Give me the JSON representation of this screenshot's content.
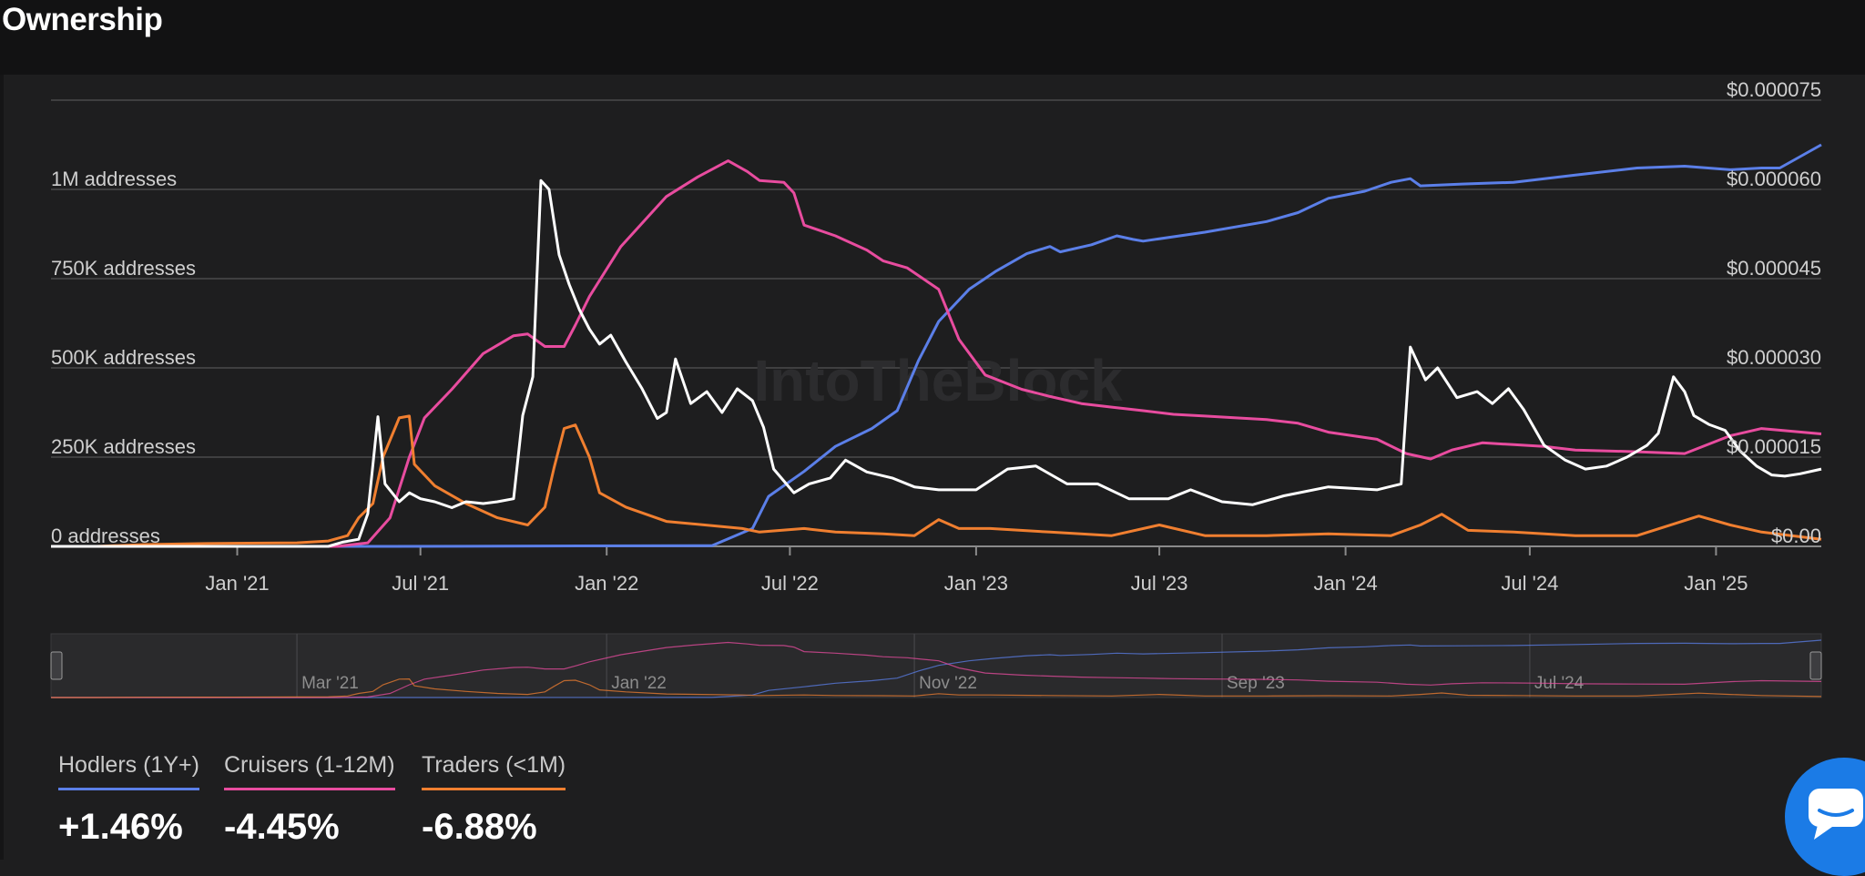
{
  "header": {
    "title": "Ownership"
  },
  "watermark": "IntoTheBlock",
  "chart_data": {
    "type": "line",
    "left_axis": {
      "ticks": [
        {
          "value": 0,
          "label": "0 addresses"
        },
        {
          "value": 250000,
          "label": "250K addresses"
        },
        {
          "value": 500000,
          "label": "500K addresses"
        },
        {
          "value": 750000,
          "label": "750K addresses"
        },
        {
          "value": 1000000,
          "label": "1M addresses"
        }
      ],
      "range": [
        0,
        1250000
      ]
    },
    "right_axis": {
      "ticks": [
        {
          "value": 0,
          "label": "$0.00"
        },
        {
          "value": 1.5e-05,
          "label": "$0.000015"
        },
        {
          "value": 3e-05,
          "label": "$0.000030"
        },
        {
          "value": 4.5e-05,
          "label": "$0.000045"
        },
        {
          "value": 6e-05,
          "label": "$0.000060"
        },
        {
          "value": 7.5e-05,
          "label": "$0.000075"
        }
      ],
      "range": [
        0,
        7.5e-05
      ]
    },
    "x_axis": {
      "range": [
        "2020-07-01",
        "2025-04-15"
      ],
      "ticks": [
        "Jan '21",
        "Jul '21",
        "Jan '22",
        "Jul '22",
        "Jan '23",
        "Jul '23",
        "Jan '24",
        "Jul '24",
        "Jan '25"
      ]
    },
    "navigator_labels": [
      "Mar '21",
      "Jan '22",
      "Nov '22",
      "Sep '23",
      "Jul '24"
    ],
    "grid": true,
    "series": [
      {
        "name": "Hodlers (1Y+)",
        "color": "#5b7fe8",
        "axis": "left",
        "points": [
          [
            "2020-07-01",
            0
          ],
          [
            "2021-06-01",
            0
          ],
          [
            "2022-04-15",
            2000
          ],
          [
            "2022-05-25",
            50000
          ],
          [
            "2022-06-10",
            140000
          ],
          [
            "2022-07-15",
            210000
          ],
          [
            "2022-08-15",
            280000
          ],
          [
            "2022-09-20",
            330000
          ],
          [
            "2022-10-15",
            380000
          ],
          [
            "2022-11-05",
            520000
          ],
          [
            "2022-11-25",
            630000
          ],
          [
            "2022-12-25",
            720000
          ],
          [
            "2023-01-20",
            770000
          ],
          [
            "2023-02-20",
            820000
          ],
          [
            "2023-03-15",
            840000
          ],
          [
            "2023-03-25",
            825000
          ],
          [
            "2023-04-25",
            845000
          ],
          [
            "2023-05-20",
            870000
          ],
          [
            "2023-06-05",
            860000
          ],
          [
            "2023-06-15",
            855000
          ],
          [
            "2023-08-15",
            880000
          ],
          [
            "2023-10-15",
            910000
          ],
          [
            "2023-11-15",
            935000
          ],
          [
            "2023-12-15",
            975000
          ],
          [
            "2024-01-20",
            995000
          ],
          [
            "2024-02-15",
            1020000
          ],
          [
            "2024-03-05",
            1030000
          ],
          [
            "2024-03-15",
            1010000
          ],
          [
            "2024-04-25",
            1015000
          ],
          [
            "2024-06-15",
            1020000
          ],
          [
            "2024-08-15",
            1040000
          ],
          [
            "2024-10-15",
            1060000
          ],
          [
            "2024-12-01",
            1065000
          ],
          [
            "2025-01-15",
            1055000
          ],
          [
            "2025-02-15",
            1060000
          ],
          [
            "2025-03-05",
            1060000
          ],
          [
            "2025-04-15",
            1125000
          ]
        ]
      },
      {
        "name": "Cruisers (1-12M)",
        "color": "#e84c9f",
        "axis": "left",
        "points": [
          [
            "2020-07-01",
            0
          ],
          [
            "2021-04-10",
            0
          ],
          [
            "2021-05-10",
            10000
          ],
          [
            "2021-06-01",
            80000
          ],
          [
            "2021-06-20",
            250000
          ],
          [
            "2021-07-05",
            360000
          ],
          [
            "2021-08-01",
            440000
          ],
          [
            "2021-09-01",
            540000
          ],
          [
            "2021-10-01",
            590000
          ],
          [
            "2021-10-15",
            595000
          ],
          [
            "2021-11-01",
            560000
          ],
          [
            "2021-11-20",
            560000
          ],
          [
            "2021-12-01",
            620000
          ],
          [
            "2021-12-15",
            700000
          ],
          [
            "2022-01-15",
            840000
          ],
          [
            "2022-03-01",
            980000
          ],
          [
            "2022-04-01",
            1035000
          ],
          [
            "2022-05-01",
            1080000
          ],
          [
            "2022-05-20",
            1050000
          ],
          [
            "2022-06-01",
            1025000
          ],
          [
            "2022-06-25",
            1020000
          ],
          [
            "2022-07-05",
            990000
          ],
          [
            "2022-07-15",
            900000
          ],
          [
            "2022-08-15",
            870000
          ],
          [
            "2022-09-15",
            830000
          ],
          [
            "2022-10-01",
            800000
          ],
          [
            "2022-10-25",
            780000
          ],
          [
            "2022-11-25",
            720000
          ],
          [
            "2022-12-15",
            580000
          ],
          [
            "2023-01-10",
            480000
          ],
          [
            "2023-02-15",
            440000
          ],
          [
            "2023-03-15",
            420000
          ],
          [
            "2023-04-15",
            400000
          ],
          [
            "2023-05-15",
            390000
          ],
          [
            "2023-06-15",
            380000
          ],
          [
            "2023-07-15",
            370000
          ],
          [
            "2023-08-15",
            365000
          ],
          [
            "2023-09-15",
            360000
          ],
          [
            "2023-10-15",
            355000
          ],
          [
            "2023-11-15",
            345000
          ],
          [
            "2023-12-15",
            320000
          ],
          [
            "2024-02-01",
            300000
          ],
          [
            "2024-03-01",
            260000
          ],
          [
            "2024-03-25",
            245000
          ],
          [
            "2024-04-15",
            270000
          ],
          [
            "2024-05-15",
            290000
          ],
          [
            "2024-06-15",
            285000
          ],
          [
            "2024-07-15",
            280000
          ],
          [
            "2024-08-15",
            270000
          ],
          [
            "2024-10-15",
            265000
          ],
          [
            "2024-12-01",
            260000
          ],
          [
            "2025-01-15",
            310000
          ],
          [
            "2025-02-15",
            330000
          ],
          [
            "2025-04-15",
            315000
          ]
        ]
      },
      {
        "name": "Traders (<1M)",
        "color": "#f07f30",
        "axis": "left",
        "points": [
          [
            "2020-07-01",
            0
          ],
          [
            "2020-08-15",
            0
          ],
          [
            "2020-10-01",
            5000
          ],
          [
            "2020-12-01",
            8000
          ],
          [
            "2021-03-01",
            10000
          ],
          [
            "2021-04-01",
            15000
          ],
          [
            "2021-04-20",
            30000
          ],
          [
            "2021-05-01",
            80000
          ],
          [
            "2021-05-15",
            120000
          ],
          [
            "2021-05-25",
            250000
          ],
          [
            "2021-06-10",
            360000
          ],
          [
            "2021-06-20",
            365000
          ],
          [
            "2021-06-25",
            230000
          ],
          [
            "2021-07-15",
            170000
          ],
          [
            "2021-08-15",
            120000
          ],
          [
            "2021-09-15",
            80000
          ],
          [
            "2021-10-15",
            60000
          ],
          [
            "2021-11-01",
            110000
          ],
          [
            "2021-11-10",
            220000
          ],
          [
            "2021-11-20",
            330000
          ],
          [
            "2021-12-01",
            340000
          ],
          [
            "2021-12-15",
            250000
          ],
          [
            "2021-12-25",
            150000
          ],
          [
            "2022-01-20",
            110000
          ],
          [
            "2022-03-01",
            70000
          ],
          [
            "2022-05-15",
            50000
          ],
          [
            "2022-06-01",
            40000
          ],
          [
            "2022-07-15",
            50000
          ],
          [
            "2022-08-15",
            40000
          ],
          [
            "2022-10-01",
            35000
          ],
          [
            "2022-11-01",
            30000
          ],
          [
            "2022-11-25",
            75000
          ],
          [
            "2022-12-15",
            50000
          ],
          [
            "2023-01-15",
            50000
          ],
          [
            "2023-03-15",
            40000
          ],
          [
            "2023-05-15",
            30000
          ],
          [
            "2023-07-01",
            60000
          ],
          [
            "2023-08-15",
            30000
          ],
          [
            "2023-10-15",
            30000
          ],
          [
            "2023-12-15",
            35000
          ],
          [
            "2024-02-15",
            30000
          ],
          [
            "2024-03-15",
            60000
          ],
          [
            "2024-04-05",
            90000
          ],
          [
            "2024-05-01",
            45000
          ],
          [
            "2024-06-15",
            40000
          ],
          [
            "2024-08-15",
            30000
          ],
          [
            "2024-10-15",
            30000
          ],
          [
            "2024-12-15",
            85000
          ],
          [
            "2025-01-15",
            60000
          ],
          [
            "2025-02-15",
            40000
          ],
          [
            "2025-04-15",
            20000
          ]
        ]
      },
      {
        "name": "",
        "color": "#ffffff",
        "axis": "right",
        "points": [
          [
            "2020-07-01",
            0
          ],
          [
            "2021-04-01",
            0
          ],
          [
            "2021-04-15",
            7e-07
          ],
          [
            "2021-05-01",
            1.2e-06
          ],
          [
            "2021-05-10",
            5.5e-06
          ],
          [
            "2021-05-20",
            2.18e-05
          ],
          [
            "2021-05-27",
            1.05e-05
          ],
          [
            "2021-06-10",
            7.5e-06
          ],
          [
            "2021-06-20",
            9e-06
          ],
          [
            "2021-07-01",
            8e-06
          ],
          [
            "2021-07-15",
            7.5e-06
          ],
          [
            "2021-08-01",
            6.5e-06
          ],
          [
            "2021-08-15",
            7.5e-06
          ],
          [
            "2021-09-01",
            7.2e-06
          ],
          [
            "2021-09-15",
            7.5e-06
          ],
          [
            "2021-10-01",
            8e-06
          ],
          [
            "2021-10-10",
            2.2e-05
          ],
          [
            "2021-10-20",
            2.85e-05
          ],
          [
            "2021-10-28",
            6.15e-05
          ],
          [
            "2021-11-05",
            6e-05
          ],
          [
            "2021-11-15",
            4.9e-05
          ],
          [
            "2021-11-25",
            4.4e-05
          ],
          [
            "2021-12-05",
            3.98e-05
          ],
          [
            "2021-12-15",
            3.65e-05
          ],
          [
            "2021-12-25",
            3.4e-05
          ],
          [
            "2022-01-05",
            3.55e-05
          ],
          [
            "2022-01-20",
            3.1e-05
          ],
          [
            "2022-02-05",
            2.65e-05
          ],
          [
            "2022-02-20",
            2.15e-05
          ],
          [
            "2022-03-01",
            2.25e-05
          ],
          [
            "2022-03-10",
            3.15e-05
          ],
          [
            "2022-03-25",
            2.4e-05
          ],
          [
            "2022-04-10",
            2.6e-05
          ],
          [
            "2022-04-25",
            2.25e-05
          ],
          [
            "2022-05-10",
            2.65e-05
          ],
          [
            "2022-05-25",
            2.45e-05
          ],
          [
            "2022-06-05",
            2e-05
          ],
          [
            "2022-06-15",
            1.3e-05
          ],
          [
            "2022-06-25",
            1.1e-05
          ],
          [
            "2022-07-05",
            9e-06
          ],
          [
            "2022-07-20",
            1.05e-05
          ],
          [
            "2022-08-10",
            1.15e-05
          ],
          [
            "2022-08-25",
            1.45e-05
          ],
          [
            "2022-09-15",
            1.25e-05
          ],
          [
            "2022-10-10",
            1.15e-05
          ],
          [
            "2022-11-01",
            1e-05
          ],
          [
            "2022-11-25",
            9.5e-06
          ],
          [
            "2023-01-01",
            9.5e-06
          ],
          [
            "2023-02-01",
            1.3e-05
          ],
          [
            "2023-03-01",
            1.35e-05
          ],
          [
            "2023-04-01",
            1.05e-05
          ],
          [
            "2023-05-01",
            1.05e-05
          ],
          [
            "2023-06-01",
            8e-06
          ],
          [
            "2023-07-10",
            8e-06
          ],
          [
            "2023-08-01",
            9.5e-06
          ],
          [
            "2023-09-01",
            7.5e-06
          ],
          [
            "2023-10-01",
            7e-06
          ],
          [
            "2023-11-01",
            8.5e-06
          ],
          [
            "2023-12-15",
            1e-05
          ],
          [
            "2024-02-01",
            9.5e-06
          ],
          [
            "2024-02-25",
            1.05e-05
          ],
          [
            "2024-03-05",
            3.35e-05
          ],
          [
            "2024-03-20",
            2.8e-05
          ],
          [
            "2024-04-01",
            3e-05
          ],
          [
            "2024-04-20",
            2.5e-05
          ],
          [
            "2024-05-10",
            2.6e-05
          ],
          [
            "2024-05-25",
            2.4e-05
          ],
          [
            "2024-06-10",
            2.65e-05
          ],
          [
            "2024-06-25",
            2.3e-05
          ],
          [
            "2024-07-15",
            1.7e-05
          ],
          [
            "2024-08-05",
            1.45e-05
          ],
          [
            "2024-08-25",
            1.3e-05
          ],
          [
            "2024-09-15",
            1.35e-05
          ],
          [
            "2024-10-05",
            1.5e-05
          ],
          [
            "2024-10-25",
            1.7e-05
          ],
          [
            "2024-11-05",
            1.9e-05
          ],
          [
            "2024-11-20",
            2.85e-05
          ],
          [
            "2024-12-01",
            2.6e-05
          ],
          [
            "2024-12-10",
            2.2e-05
          ],
          [
            "2024-12-25",
            2.05e-05
          ],
          [
            "2025-01-10",
            1.95e-05
          ],
          [
            "2025-01-25",
            1.6e-05
          ],
          [
            "2025-02-10",
            1.35e-05
          ],
          [
            "2025-02-25",
            1.2e-05
          ],
          [
            "2025-03-10",
            1.18e-05
          ],
          [
            "2025-03-25",
            1.22e-05
          ],
          [
            "2025-04-15",
            1.3e-05
          ]
        ]
      }
    ]
  },
  "legend": [
    {
      "name": "Hodlers (1Y+)",
      "change": "+1.46%",
      "color": "#5b7fe8"
    },
    {
      "name": "Cruisers (1-12M)",
      "change": "-4.45%",
      "color": "#e84c9f"
    },
    {
      "name": "Traders (<1M)",
      "change": "-6.88%",
      "color": "#f07f30"
    }
  ],
  "chat_button": {
    "icon": "chat-icon",
    "color": "#1b7be6"
  }
}
